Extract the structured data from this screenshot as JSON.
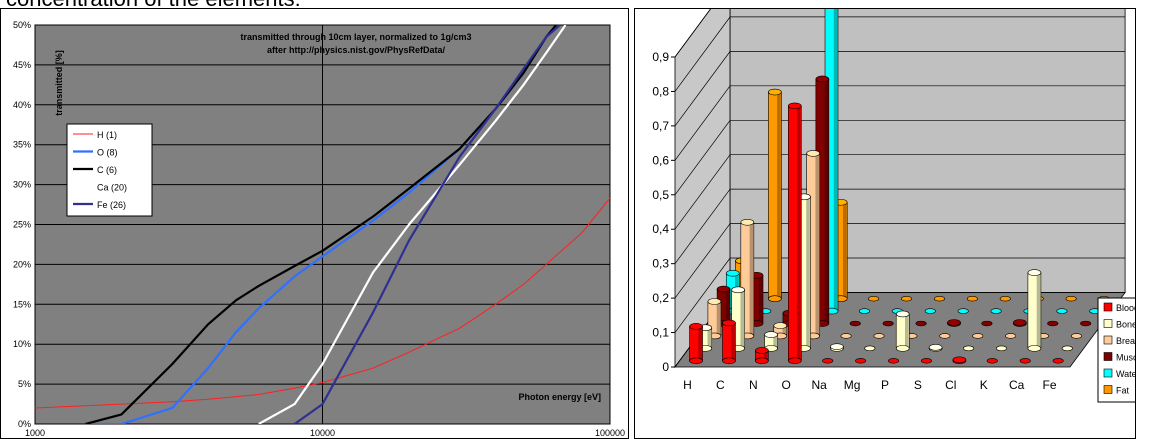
{
  "page_heading": "concentration of the elements:",
  "colors": {
    "plot_bg": "#808080",
    "grid": "#000000",
    "H": "#ff2020",
    "O": "#3070ff",
    "C": "#000000",
    "Ca": "#ffffff",
    "Fe": "#303090",
    "Blood": "#ff0000",
    "Bone": "#ffffcc",
    "Breast": "#ffcc99",
    "Muscle": "#800000",
    "Water": "#00ffff",
    "Fat": "#ff9900"
  },
  "chart_data": [
    {
      "type": "line",
      "title": "transmitted through 10cm layer,  normalized to 1g/cm3",
      "subtitle": "after http://physics.nist.gov/PhysRefData/",
      "xlabel": "Photon energy [eV]",
      "ylabel": "transmitted [%]",
      "x_scale": "log",
      "xlim": [
        1000,
        100000
      ],
      "ylim": [
        0,
        50
      ],
      "x_ticks": [
        "1000",
        "10000",
        "100000"
      ],
      "y_ticks": [
        "0%",
        "5%",
        "10%",
        "15%",
        "20%",
        "25%",
        "30%",
        "35%",
        "40%",
        "45%",
        "50%"
      ],
      "grid": true,
      "legend_position": "left-middle",
      "series": [
        {
          "name": "H (1)",
          "x": [
            1000,
            2000,
            3000,
            4000,
            6000,
            8000,
            10000,
            15000,
            20000,
            30000,
            40000,
            50000,
            60000,
            80000,
            100000
          ],
          "y": [
            2.0,
            2.5,
            2.8,
            3.1,
            3.7,
            4.5,
            5.2,
            7.0,
            9.0,
            12.0,
            15.0,
            17.5,
            20.0,
            24.0,
            28.3
          ]
        },
        {
          "name": "O (8)",
          "x": [
            1500,
            2000,
            3000,
            4000,
            5000,
            6000,
            8000,
            10000,
            15000,
            20000,
            30000,
            40000,
            50000,
            60000,
            65000
          ],
          "y": [
            0,
            0,
            2.0,
            7.0,
            11.5,
            14.5,
            18.5,
            21.0,
            25.5,
            29.0,
            34.5,
            39.5,
            44.0,
            48.5,
            50.0
          ]
        },
        {
          "name": "C (6)",
          "x": [
            1500,
            2000,
            3000,
            4000,
            5000,
            6000,
            8000,
            10000,
            15000,
            20000,
            30000,
            40000,
            50000,
            60000,
            65000
          ],
          "y": [
            0,
            1.2,
            7.5,
            12.5,
            15.5,
            17.3,
            19.8,
            21.7,
            26.0,
            29.5,
            34.5,
            39.5,
            44.0,
            48.5,
            50.0
          ]
        },
        {
          "name": "Ca (20)",
          "x": [
            6000,
            8000,
            10000,
            15000,
            20000,
            30000,
            40000,
            50000,
            60000,
            70000
          ],
          "y": [
            0,
            2.5,
            7.5,
            19.0,
            25.0,
            32.5,
            38.0,
            42.5,
            46.5,
            50.0
          ]
        },
        {
          "name": "Fe (26)",
          "x": [
            8000,
            10000,
            15000,
            20000,
            30000,
            40000,
            50000,
            60000,
            67000
          ],
          "y": [
            0,
            2.5,
            14.0,
            23.0,
            33.5,
            39.5,
            44.5,
            48.5,
            50.0
          ]
        }
      ]
    },
    {
      "type": "bar",
      "subtype": "3d-column",
      "categories": [
        "H",
        "C",
        "N",
        "O",
        "Na",
        "Mg",
        "P",
        "S",
        "Cl",
        "K",
        "Ca",
        "Fe"
      ],
      "ylim": [
        0,
        0.9
      ],
      "y_ticks": [
        "0",
        "0,1",
        "0,2",
        "0,3",
        "0,4",
        "0,5",
        "0,6",
        "0,7",
        "0,8",
        "0,9"
      ],
      "grid": true,
      "legend_position": "bottom-right",
      "series": [
        {
          "name": "Blood",
          "values": [
            0.1,
            0.11,
            0.03,
            0.74,
            0.001,
            0.0,
            0.001,
            0.002,
            0.003,
            0.002,
            0.0,
            0.001
          ]
        },
        {
          "name": "Bone",
          "values": [
            0.06,
            0.17,
            0.04,
            0.44,
            0.005,
            0.002,
            0.1,
            0.003,
            0.001,
            0.0,
            0.22,
            0.0
          ]
        },
        {
          "name": "Breast",
          "values": [
            0.1,
            0.33,
            0.03,
            0.53,
            0.001,
            0.0,
            0.001,
            0.002,
            0.001,
            0.0,
            0.0,
            0.0
          ]
        },
        {
          "name": "Muscle",
          "values": [
            0.1,
            0.14,
            0.03,
            0.71,
            0.001,
            0.0,
            0.002,
            0.003,
            0.001,
            0.003,
            0.0,
            0.0
          ]
        },
        {
          "name": "Water",
          "values": [
            0.11,
            0.0,
            0.0,
            0.89,
            0.0,
            0.0,
            0.0,
            0.0,
            0.0,
            0.0,
            0.0,
            0.0
          ]
        },
        {
          "name": "Fat",
          "values": [
            0.11,
            0.6,
            0.01,
            0.28,
            0.0,
            0.0,
            0.0,
            0.0,
            0.0,
            0.0,
            0.0,
            0.0
          ]
        }
      ]
    }
  ]
}
